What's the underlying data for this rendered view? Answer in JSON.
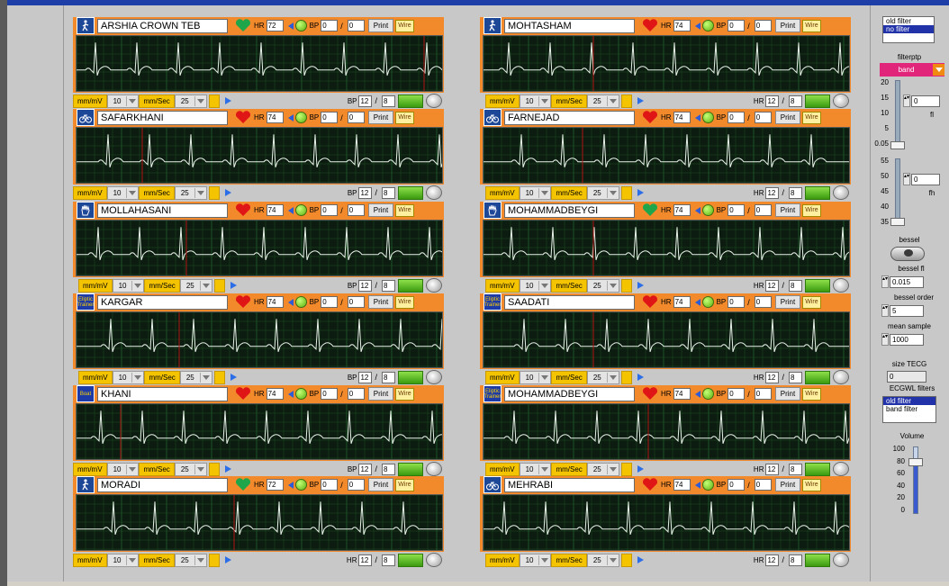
{
  "panels": [
    {
      "name": "ARSHIA CROWN TEB",
      "avatar": "walker-icon",
      "avatar_text": "",
      "heart": "green",
      "hr": "72",
      "bp1": "0",
      "bp2": "0",
      "mm_mv": "10",
      "mm_sec": "25",
      "meas_label": "BP",
      "m1": "12",
      "m2": "8",
      "cursor": 0.95
    },
    {
      "name": "MOHTASHAM",
      "avatar": "walker-icon",
      "avatar_text": "",
      "heart": "red",
      "hr": "74",
      "bp1": "0",
      "bp2": "0",
      "mm_mv": "10",
      "mm_sec": "25",
      "meas_label": "HR",
      "m1": "12",
      "m2": "8",
      "cursor": 0.3
    },
    {
      "name": "SAFARKHANI",
      "avatar": "bike-icon",
      "avatar_text": "",
      "heart": "red",
      "hr": "74",
      "bp1": "0",
      "bp2": "0",
      "mm_mv": "10",
      "mm_sec": "25",
      "meas_label": "BP",
      "m1": "12",
      "m2": "8",
      "cursor": 0.18
    },
    {
      "name": "FARNEJAD",
      "avatar": "bike-icon",
      "avatar_text": "",
      "heart": "red",
      "hr": "74",
      "bp1": "0",
      "bp2": "0",
      "mm_mv": "10",
      "mm_sec": "25",
      "meas_label": "HR",
      "m1": "12",
      "m2": "8",
      "cursor": 0.27
    },
    {
      "name": "MOLLAHASANI",
      "avatar": "hand-icon",
      "avatar_text": "",
      "heart": "red",
      "hr": "74",
      "bp1": "0",
      "bp2": "0",
      "mm_mv": "10",
      "mm_sec": "25",
      "meas_label": "BP",
      "m1": "12",
      "m2": "8",
      "cursor": 0.3
    },
    {
      "name": "MOHAMMADBEYGI",
      "avatar": "hand-icon",
      "avatar_text": "",
      "heart": "green",
      "hr": "74",
      "bp1": "0",
      "bp2": "0",
      "mm_mv": "10",
      "mm_sec": "25",
      "meas_label": "HR",
      "m1": "12",
      "m2": "8",
      "cursor": 0.3
    },
    {
      "name": "KARGAR",
      "avatar": "elliptic-trainer-icon",
      "avatar_text": "Eliptic Trainer",
      "heart": "red",
      "hr": "74",
      "bp1": "0",
      "bp2": "0",
      "mm_mv": "10",
      "mm_sec": "25",
      "meas_label": "BP",
      "m1": "12",
      "m2": "8",
      "cursor": 0.28
    },
    {
      "name": "SAADATI",
      "avatar": "elliptic-trainer-icon",
      "avatar_text": "Eliptic Trainer",
      "heart": "red",
      "hr": "74",
      "bp1": "0",
      "bp2": "0",
      "mm_mv": "10",
      "mm_sec": "25",
      "meas_label": "HR",
      "m1": "12",
      "m2": "8",
      "cursor": 0.3
    },
    {
      "name": "KHANI",
      "avatar": "boat-icon",
      "avatar_text": "Boat",
      "heart": "red",
      "hr": "74",
      "bp1": "0",
      "bp2": "0",
      "mm_mv": "10",
      "mm_sec": "25",
      "meas_label": "BP",
      "m1": "12",
      "m2": "8",
      "cursor": 0.12
    },
    {
      "name": "MOHAMMADBEYGI",
      "avatar": "elliptic-trainer-icon",
      "avatar_text": "Eliptic Trainer",
      "heart": "red",
      "hr": "74",
      "bp1": "0",
      "bp2": "0",
      "mm_mv": "10",
      "mm_sec": "25",
      "meas_label": "HR",
      "m1": "12",
      "m2": "8",
      "cursor": 0.45
    },
    {
      "name": "MORADI",
      "avatar": "walker-icon",
      "avatar_text": "",
      "heart": "green",
      "hr": "72",
      "bp1": "0",
      "bp2": "0",
      "mm_mv": "10",
      "mm_sec": "25",
      "meas_label": "HR",
      "m1": "12",
      "m2": "8",
      "cursor": 0.43
    },
    {
      "name": "MEHRABI",
      "avatar": "bike-icon",
      "avatar_text": "",
      "heart": "red",
      "hr": "74",
      "bp1": "0",
      "bp2": "0",
      "mm_mv": "10",
      "mm_sec": "25",
      "meas_label": "HR",
      "m1": "12",
      "m2": "8",
      "cursor": 0.0
    }
  ],
  "labels": {
    "hr": "HR",
    "bp": "BP",
    "print": "Print",
    "wire": "Wire",
    "mm_mv": "mm/mV",
    "mm_sec": "mm/Sec",
    "slash": "/"
  },
  "right": {
    "filter_list": [
      "old filter",
      "no filter"
    ],
    "filterptp_label": "filterptp",
    "filterptp_value": "band",
    "fl_scale": [
      "20",
      "15",
      "10",
      "5",
      "0.05"
    ],
    "fl_value": "0",
    "fl_label": "fl",
    "fh_scale": [
      "55",
      "50",
      "45",
      "40",
      "35"
    ],
    "fh_value": "0",
    "fh_label": "fh",
    "bessel_label": "bessel",
    "bessel_fl_label": "bessel fl",
    "bessel_fl_value": "0.015",
    "bessel_order_label": "bessel order",
    "bessel_order_value": "5",
    "mean_sample_label": "mean sample",
    "mean_sample_value": "1000",
    "size_tecg_label": "size TECG",
    "size_tecg_value": "0",
    "ecgwl_label": "ECGWL filters",
    "ecgwl_list": [
      "old filter",
      "band filter"
    ],
    "volume_label": "Volume",
    "volume_scale": [
      "100",
      "80",
      "60",
      "40",
      "20",
      "0"
    ],
    "volume_level": 0.78
  },
  "colors": {
    "header": "#f28a2c",
    "screen": "#0c1c10",
    "grid": "#1f5a2a",
    "trace": "#e8f2e8",
    "cursor": "#b01515"
  }
}
